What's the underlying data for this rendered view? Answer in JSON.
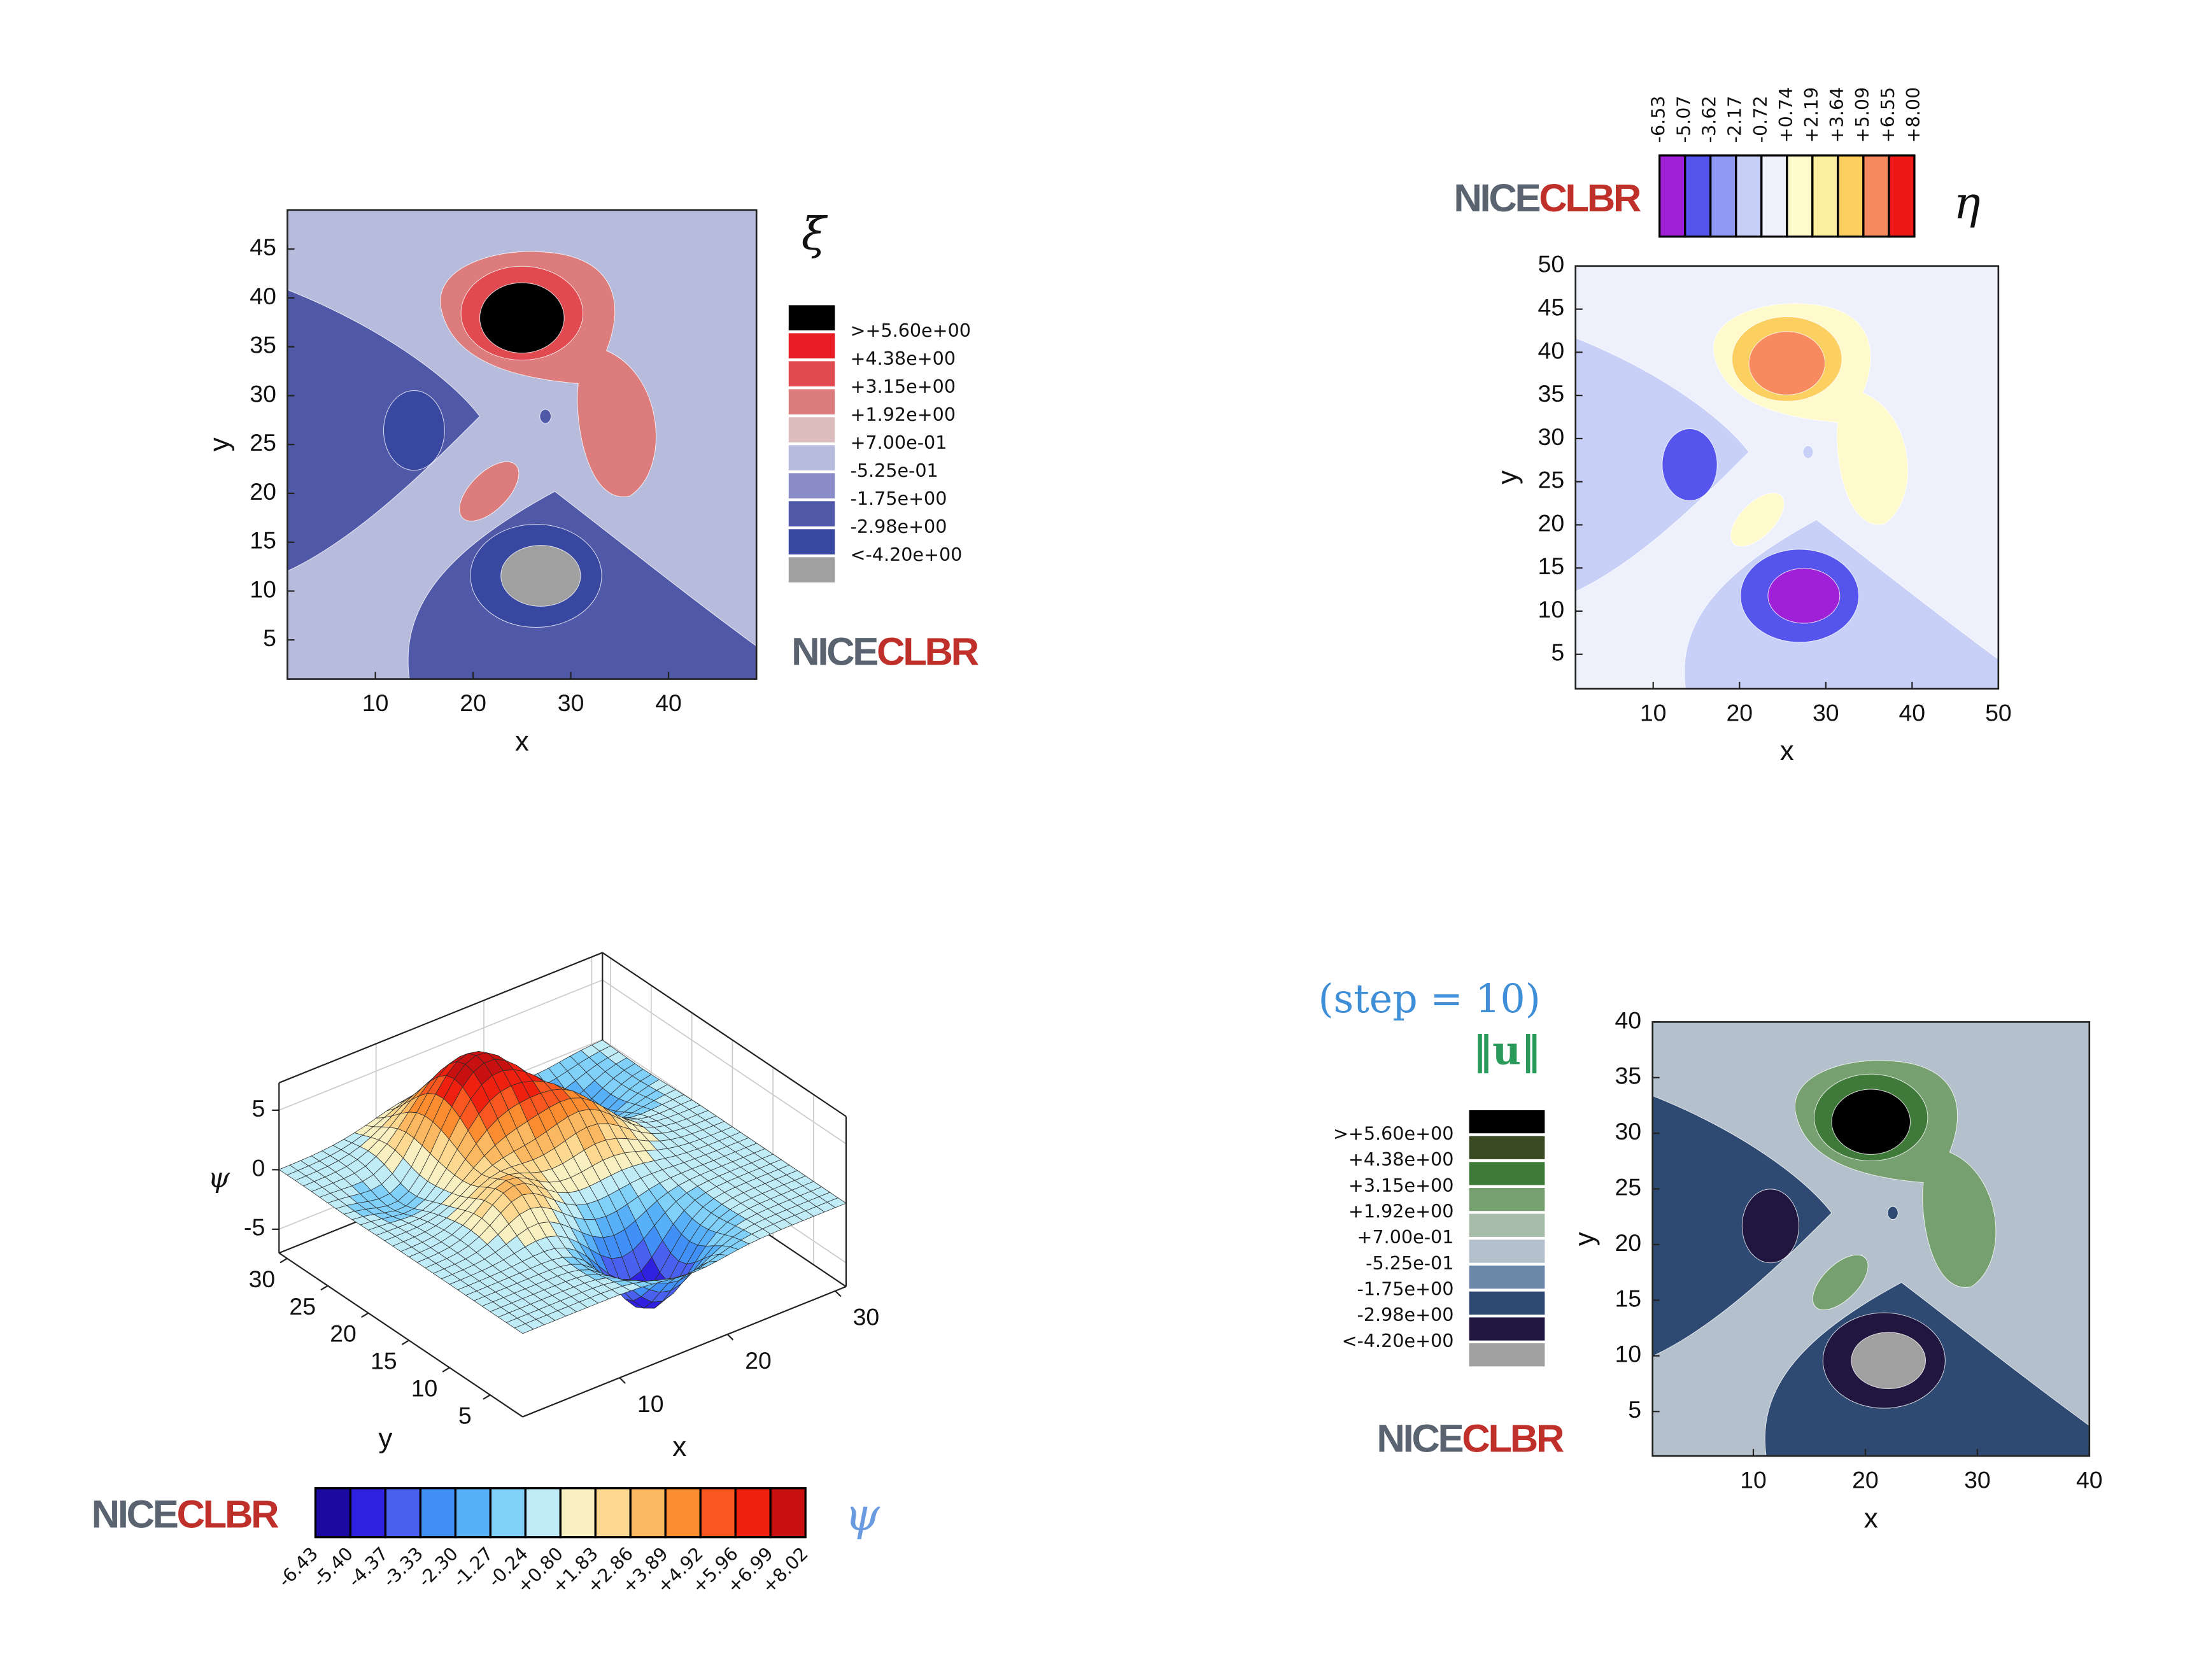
{
  "chart_data": [
    {
      "type": "contour",
      "xlabel": "x",
      "ylabel": "y",
      "xlim": [
        1,
        49
      ],
      "ylim": [
        1,
        49
      ],
      "xticks": [
        10,
        20,
        30,
        40
      ],
      "yticks": [
        5,
        10,
        15,
        20,
        25,
        30,
        35,
        40,
        45
      ],
      "logo": {
        "left": "NICE",
        "right": "CLBR"
      },
      "colorbar": {
        "title": "ξ",
        "orientation": "vertical",
        "colors": [
          "#000000",
          "#e81c24",
          "#e04a50",
          "#dc7c7c",
          "#dcbcbc",
          "#b8bcdc",
          "#8a8cc8",
          "#5058a8",
          "#3848a0",
          "#a0a0a0"
        ],
        "ticks": [
          {
            "value": 5.6,
            "label": ">+5.60e+00"
          },
          {
            "value": 4.38,
            "label": "+4.38e+00"
          },
          {
            "value": 3.15,
            "label": "+3.15e+00"
          },
          {
            "value": 1.92,
            "label": "+1.92e+00"
          },
          {
            "value": 0.7,
            "label": "+7.00e-01"
          },
          {
            "value": -0.525,
            "label": "-5.25e-01"
          },
          {
            "value": -1.75,
            "label": "-1.75e+00"
          },
          {
            "value": -2.98,
            "label": "-2.98e+00"
          },
          {
            "value": -4.2,
            "label": "<-4.20e+00"
          }
        ]
      }
    },
    {
      "type": "contour",
      "xlabel": "x",
      "ylabel": "y",
      "xlim": [
        1,
        50
      ],
      "ylim": [
        1,
        50
      ],
      "xticks": [
        10,
        20,
        30,
        40,
        50
      ],
      "yticks": [
        5,
        10,
        15,
        20,
        25,
        30,
        35,
        40,
        45,
        50
      ],
      "logo": {
        "left": "NICE",
        "right": "CLBR"
      },
      "colorbar": {
        "title": "η",
        "orientation": "horizontal",
        "colors": [
          "#a020d8",
          "#5555ee",
          "#8f98f2",
          "#c8d0f8",
          "#eef0fb",
          "#fffacc",
          "#fcf0a0",
          "#fcd060",
          "#f88a60",
          "#ee1818"
        ],
        "ticks": [
          -6.53,
          -5.07,
          -3.62,
          -2.17,
          -0.72,
          {
            "value": 0.74,
            "label": "+0.74"
          },
          {
            "value": 2.19,
            "label": "+2.19"
          },
          {
            "value": 3.64,
            "label": "+3.64"
          },
          {
            "value": 5.09,
            "label": "+5.09"
          },
          {
            "value": 6.55,
            "label": "+6.55"
          },
          {
            "value": 8.0,
            "label": "+8.00"
          }
        ]
      }
    },
    {
      "type": "surface",
      "xlabel": "x",
      "ylabel": "y",
      "zlabel": "ψ",
      "xlim": [
        1,
        31
      ],
      "ylim": [
        1,
        31
      ],
      "zlim": [
        -7,
        7.3
      ],
      "xticks": [
        10,
        20,
        30
      ],
      "yticks": [
        5,
        10,
        15,
        20,
        25,
        30
      ],
      "zticks": [
        -5,
        0,
        5
      ],
      "logo": {
        "left": "NICE",
        "right": "CLBR"
      },
      "colorbar": {
        "title": "ψ",
        "orientation": "horizontal",
        "colors": [
          "#1a0aa0",
          "#3020e0",
          "#4a60f0",
          "#4090f8",
          "#58b0f8",
          "#80d0fa",
          "#c0ecf8",
          "#f8f0c0",
          "#fcd890",
          "#fcb860",
          "#fc8c30",
          "#f85820",
          "#f02010",
          "#c81010"
        ],
        "ticks": [
          -6.43,
          {
            "value": -5.4,
            "label": "-5.40"
          },
          -4.37,
          -3.33,
          {
            "value": -2.3,
            "label": "-2.30"
          },
          -1.27,
          -0.24,
          {
            "value": 0.8,
            "label": "+0.80"
          },
          {
            "value": 1.83,
            "label": "+1.83"
          },
          {
            "value": 2.86,
            "label": "+2.86"
          },
          {
            "value": 3.89,
            "label": "+3.89"
          },
          {
            "value": 4.92,
            "label": "+4.92"
          },
          {
            "value": 5.96,
            "label": "+5.96"
          },
          {
            "value": 6.99,
            "label": "+6.99"
          },
          {
            "value": 8.02,
            "label": "+8.02"
          }
        ]
      }
    },
    {
      "type": "contour",
      "subtitle": "(step = 10)",
      "xlabel": "x",
      "ylabel": "y",
      "xlim": [
        1,
        40
      ],
      "ylim": [
        1,
        40
      ],
      "xticks": [
        10,
        20,
        30,
        40
      ],
      "yticks": [
        5,
        10,
        15,
        20,
        25,
        30,
        35,
        40
      ],
      "logo": {
        "left": "NICE",
        "right": "CLBR"
      },
      "colorbar": {
        "title": "‖u‖",
        "orientation": "vertical",
        "colors": [
          "#000000",
          "#3a4a22",
          "#3f7a3a",
          "#76a070",
          "#a8bcaa",
          "#b4c0cc",
          "#6c88a8",
          "#2e4a72",
          "#201640",
          "#a0a0a0"
        ],
        "ticks": [
          {
            "value": 5.6,
            "label": ">+5.60e+00"
          },
          {
            "value": 4.38,
            "label": "+4.38e+00"
          },
          {
            "value": 3.15,
            "label": "+3.15e+00"
          },
          {
            "value": 1.92,
            "label": "+1.92e+00"
          },
          {
            "value": 0.7,
            "label": "+7.00e-01"
          },
          {
            "value": -0.525,
            "label": "-5.25e-01"
          },
          {
            "value": -1.75,
            "label": "-1.75e+00"
          },
          {
            "value": -2.98,
            "label": "-2.98e+00"
          },
          {
            "value": -4.2,
            "label": "<-4.20e+00"
          }
        ]
      }
    }
  ]
}
